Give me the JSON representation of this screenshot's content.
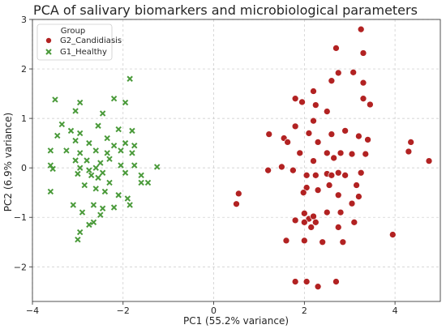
{
  "chart_data": {
    "type": "scatter",
    "title": "PCA of salivary biomarkers and microbiological parameters",
    "xlabel": "PC1 (55.2% variance)",
    "ylabel": "PC2 (6.9% variance)",
    "xlim": [
      -4,
      5
    ],
    "ylim": [
      -2.7,
      3
    ],
    "xticks": [
      -4,
      -2,
      0,
      2,
      4
    ],
    "yticks": [
      -2,
      -1,
      0,
      1,
      2,
      3
    ],
    "grid": true,
    "grid_style": "dashed",
    "legend": {
      "title": "Group",
      "placement": "top-left",
      "entries": [
        "G2_Candidiasis",
        "G1_Healthy"
      ]
    },
    "series": [
      {
        "name": "G2_Candidiasis",
        "marker": "circle",
        "color": "#b22222",
        "points": [
          [
            3.25,
            2.8
          ],
          [
            2.7,
            2.42
          ],
          [
            3.3,
            2.32
          ],
          [
            3.08,
            1.93
          ],
          [
            2.75,
            1.92
          ],
          [
            2.6,
            1.76
          ],
          [
            3.3,
            1.72
          ],
          [
            2.2,
            1.55
          ],
          [
            1.8,
            1.4
          ],
          [
            1.95,
            1.33
          ],
          [
            2.25,
            1.27
          ],
          [
            3.3,
            1.4
          ],
          [
            3.45,
            1.28
          ],
          [
            2.5,
            1.14
          ],
          [
            1.22,
            0.68
          ],
          [
            1.55,
            0.6
          ],
          [
            1.63,
            0.52
          ],
          [
            1.8,
            0.84
          ],
          [
            2.2,
            0.95
          ],
          [
            2.1,
            0.7
          ],
          [
            2.3,
            0.52
          ],
          [
            2.6,
            0.68
          ],
          [
            2.9,
            0.75
          ],
          [
            3.2,
            0.64
          ],
          [
            3.4,
            0.57
          ],
          [
            1.9,
            0.3
          ],
          [
            2.2,
            0.14
          ],
          [
            2.5,
            0.3
          ],
          [
            2.65,
            0.2
          ],
          [
            2.8,
            0.3
          ],
          [
            3.05,
            0.28
          ],
          [
            3.35,
            0.28
          ],
          [
            4.35,
            0.52
          ],
          [
            4.3,
            0.33
          ],
          [
            4.75,
            0.14
          ],
          [
            1.2,
            -0.05
          ],
          [
            1.5,
            0.02
          ],
          [
            1.75,
            -0.05
          ],
          [
            2.05,
            -0.15
          ],
          [
            2.25,
            -0.15
          ],
          [
            2.5,
            -0.12
          ],
          [
            2.6,
            -0.15
          ],
          [
            2.75,
            -0.1
          ],
          [
            2.9,
            -0.15
          ],
          [
            3.25,
            -0.1
          ],
          [
            3.15,
            -0.35
          ],
          [
            2.55,
            -0.35
          ],
          [
            2.05,
            -0.4
          ],
          [
            1.98,
            -0.5
          ],
          [
            2.3,
            -0.45
          ],
          [
            2.75,
            -0.55
          ],
          [
            3.2,
            -0.58
          ],
          [
            0.55,
            -0.52
          ],
          [
            0.5,
            -0.73
          ],
          [
            2.0,
            -0.92
          ],
          [
            2.1,
            -1.03
          ],
          [
            2.2,
            -0.98
          ],
          [
            2.5,
            -0.9
          ],
          [
            2.8,
            -0.9
          ],
          [
            3.05,
            -0.72
          ],
          [
            1.8,
            -1.06
          ],
          [
            2.0,
            -1.1
          ],
          [
            2.15,
            -1.2
          ],
          [
            2.25,
            -1.1
          ],
          [
            2.75,
            -1.2
          ],
          [
            3.1,
            -1.1
          ],
          [
            1.6,
            -1.47
          ],
          [
            2.0,
            -1.47
          ],
          [
            2.4,
            -1.5
          ],
          [
            2.85,
            -1.5
          ],
          [
            3.95,
            -1.35
          ],
          [
            1.8,
            -2.3
          ],
          [
            2.05,
            -2.3
          ],
          [
            2.3,
            -2.4
          ],
          [
            2.7,
            -2.3
          ]
        ]
      },
      {
        "name": "G1_Healthy",
        "marker": "x",
        "color": "#4a9a3a",
        "points": [
          [
            -1.85,
            1.8
          ],
          [
            -2.2,
            1.4
          ],
          [
            -2.95,
            1.32
          ],
          [
            -1.95,
            1.32
          ],
          [
            -3.5,
            1.38
          ],
          [
            -3.05,
            1.15
          ],
          [
            -2.45,
            1.1
          ],
          [
            -3.35,
            0.88
          ],
          [
            -3.15,
            0.75
          ],
          [
            -2.95,
            0.7
          ],
          [
            -2.55,
            0.85
          ],
          [
            -2.1,
            0.78
          ],
          [
            -1.8,
            0.75
          ],
          [
            -3.45,
            0.65
          ],
          [
            -3.05,
            0.55
          ],
          [
            -2.75,
            0.5
          ],
          [
            -2.35,
            0.6
          ],
          [
            -2.2,
            0.45
          ],
          [
            -1.95,
            0.5
          ],
          [
            -1.75,
            0.45
          ],
          [
            -3.6,
            0.35
          ],
          [
            -3.25,
            0.35
          ],
          [
            -2.95,
            0.3
          ],
          [
            -2.6,
            0.35
          ],
          [
            -2.35,
            0.3
          ],
          [
            -2.05,
            0.35
          ],
          [
            -1.8,
            0.3
          ],
          [
            -3.6,
            0.05
          ],
          [
            -3.05,
            0.15
          ],
          [
            -2.8,
            0.15
          ],
          [
            -2.5,
            0.1
          ],
          [
            -2.3,
            0.18
          ],
          [
            -2.05,
            0.05
          ],
          [
            -1.75,
            0.05
          ],
          [
            -3.55,
            -0.02
          ],
          [
            -2.95,
            0.0
          ],
          [
            -2.75,
            -0.05
          ],
          [
            -2.6,
            0.0
          ],
          [
            -2.45,
            -0.1
          ],
          [
            -1.95,
            -0.1
          ],
          [
            -1.25,
            0.02
          ],
          [
            -1.6,
            -0.15
          ],
          [
            -3.0,
            -0.12
          ],
          [
            -2.7,
            -0.15
          ],
          [
            -2.55,
            -0.2
          ],
          [
            -2.3,
            -0.3
          ],
          [
            -1.6,
            -0.3
          ],
          [
            -1.45,
            -0.3
          ],
          [
            -3.6,
            -0.48
          ],
          [
            -2.85,
            -0.35
          ],
          [
            -2.6,
            -0.42
          ],
          [
            -2.4,
            -0.48
          ],
          [
            -2.1,
            -0.55
          ],
          [
            -1.9,
            -0.62
          ],
          [
            -2.65,
            -0.75
          ],
          [
            -2.45,
            -0.82
          ],
          [
            -2.2,
            -0.8
          ],
          [
            -1.85,
            -0.75
          ],
          [
            -3.1,
            -0.75
          ],
          [
            -2.9,
            -0.9
          ],
          [
            -2.5,
            -0.95
          ],
          [
            -2.75,
            -1.15
          ],
          [
            -2.65,
            -1.1
          ],
          [
            -2.95,
            -1.3
          ],
          [
            -3.0,
            -1.45
          ]
        ]
      }
    ]
  }
}
